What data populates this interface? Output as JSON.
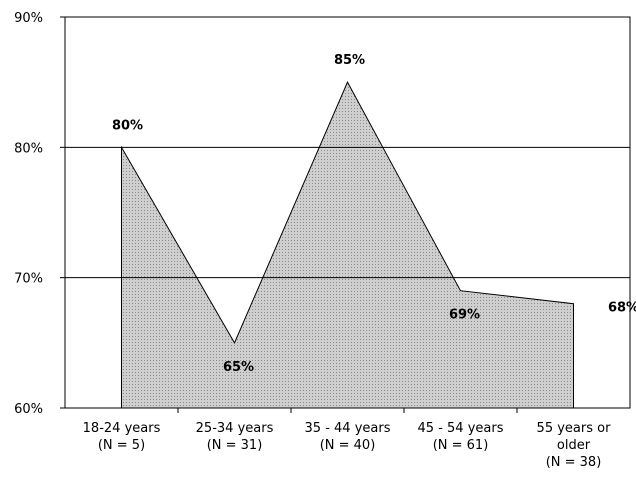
{
  "chart_data": {
    "type": "area",
    "categories": [
      [
        "18-24 years",
        "(N = 5)"
      ],
      [
        "25-34 years",
        "(N = 31)"
      ],
      [
        "35 - 44 years",
        "(N = 40)"
      ],
      [
        "45 - 54 years",
        "(N = 61)"
      ],
      [
        "55 years or",
        "older",
        "(N = 38)"
      ]
    ],
    "values": [
      80,
      65,
      85,
      69,
      68
    ],
    "value_labels": [
      "80%",
      "65%",
      "85%",
      "69%",
      "68%"
    ],
    "color": "#c4c4c4",
    "ylim": [
      60,
      90
    ],
    "yticks": [
      {
        "value": 60,
        "label": "60%"
      },
      {
        "value": 70,
        "label": "70%"
      },
      {
        "value": 80,
        "label": "80%"
      },
      {
        "value": 90,
        "label": "90%"
      }
    ],
    "grid": true
  }
}
